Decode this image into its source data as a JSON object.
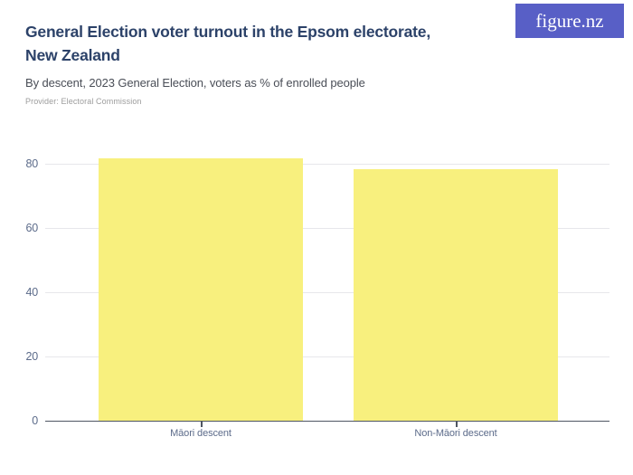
{
  "header": {
    "title": "General Election voter turnout in the Epsom electorate, New Zealand",
    "title_lines": [
      "General Election voter turnout in the Epsom electorate,",
      "New Zealand"
    ],
    "subtitle": "By descent, 2023 General Election, voters as % of enrolled people",
    "provider": "Provider: Electoral Commission",
    "logo_text": "figure.nz"
  },
  "colors": {
    "title": "#2C4269",
    "subtitle": "#4A4E57",
    "provider": "#9C9C9C",
    "logo_background": "#585FC6",
    "logo_text": "#FFFFFF",
    "bar_fill": "#F8F07E",
    "gridline": "#E7E7EB",
    "axis_line": "#4E5562",
    "tick_label": "#5C6B8A",
    "background": "#FFFFFF"
  },
  "chart_data": {
    "type": "bar",
    "title": "General Election voter turnout in the Epsom electorate, New Zealand",
    "subtitle": "By descent, 2023 General Election, voters as % of enrolled people",
    "categories": [
      "Māori descent",
      "Non-Māori descent"
    ],
    "values": [
      81.7,
      78.4
    ],
    "xlabel": "",
    "ylabel": "voters as % of enrolled people",
    "yticks": [
      0,
      20,
      40,
      60,
      80
    ],
    "ylim": [
      0,
      82
    ],
    "grid": true,
    "legend": "none",
    "bar_color": "#F8F07E"
  }
}
